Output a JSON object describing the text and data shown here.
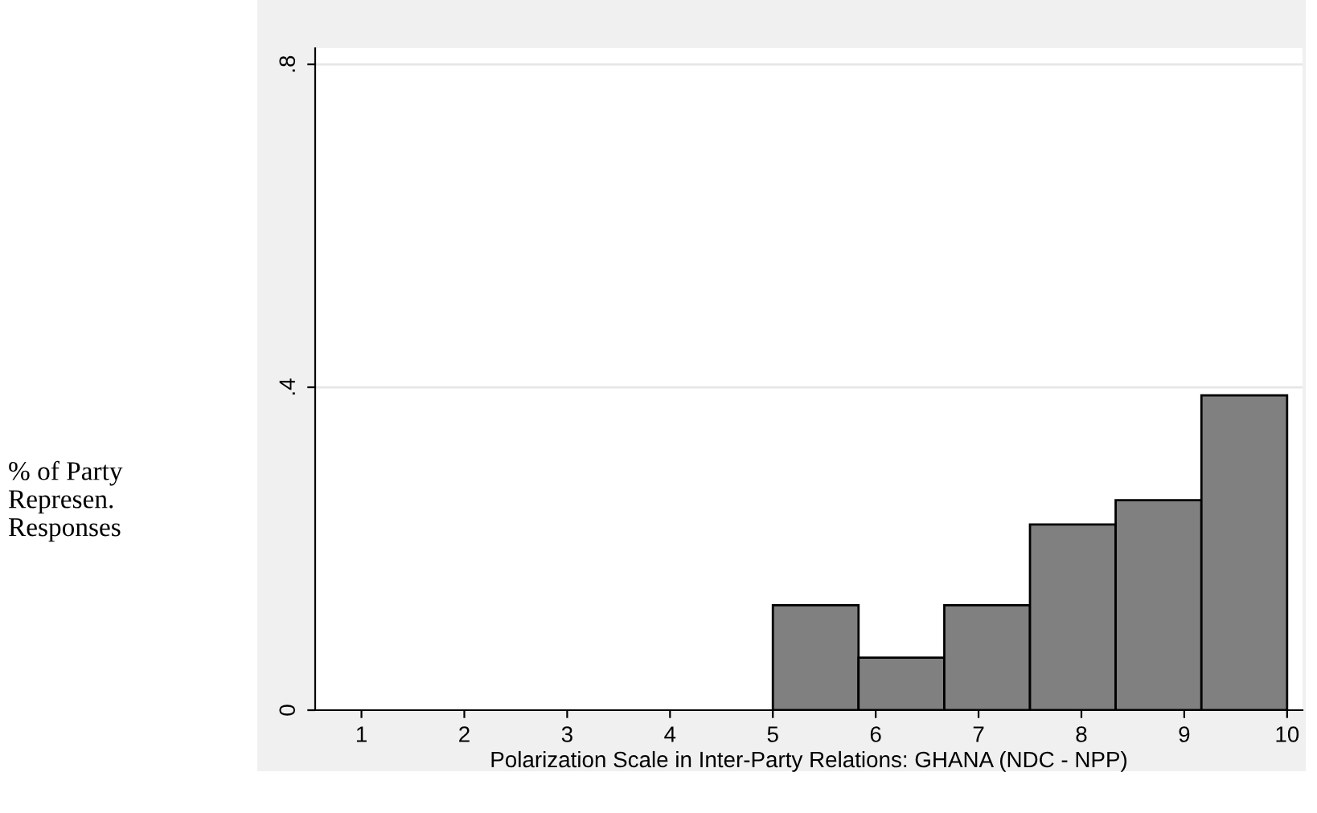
{
  "chart_data": {
    "type": "histogram",
    "xlabel": "Polarization Scale in Inter-Party Relations: GHANA (NDC - NPP)",
    "annotations": [
      "% of Party\nRepresen.\nResponses"
    ],
    "bins": [
      5,
      5.833,
      6.667,
      7.5,
      8.333,
      9.167,
      10
    ],
    "values": [
      0.13,
      0.065,
      0.13,
      0.23,
      0.26,
      0.39
    ],
    "color": "#808080",
    "xlim": [
      0.55,
      10.15
    ],
    "xticks": [
      1,
      2,
      3,
      4,
      5,
      6,
      7,
      8,
      9,
      10
    ],
    "ylim": [
      0,
      0.82
    ],
    "yticks": [
      {
        "value": 0,
        "label": "0"
      },
      {
        "value": 0.4,
        "label": ".4"
      },
      {
        "value": 0.8,
        "label": ".8"
      }
    ],
    "grid": "y",
    "legend": false
  }
}
